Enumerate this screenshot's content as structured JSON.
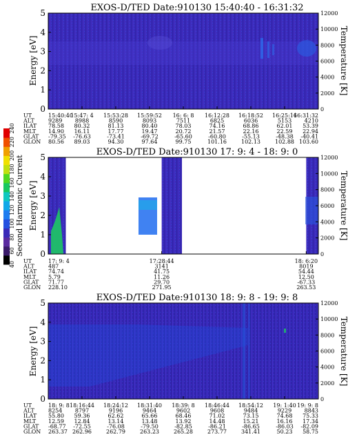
{
  "chart_data": [
    {
      "type": "heatmap",
      "title": "EXOS-D/TED   Date:910130   15:40:40 - 16:31:32",
      "ylabel": "Energy [eV]",
      "ylabel_right": "Temperature [K]",
      "ylim": [
        0,
        5
      ],
      "ylim_right": [
        0,
        12000
      ],
      "yticks": [
        "0",
        "1",
        "2",
        "3",
        "4",
        "5"
      ],
      "yticks_right": [
        "0",
        "2000",
        "4000",
        "6000",
        "8000",
        "10000",
        "12000"
      ],
      "time_start": "15:40:40",
      "time_end": "16:31:32",
      "data_coverage": [
        [
          0.0,
          1.0
        ]
      ],
      "ephemeris": {
        "labels": [
          "UT",
          "ALT",
          "ILAT",
          "MLT",
          "GLAT",
          "GLON"
        ],
        "columns": [
          [
            "15:40:40",
            "9289",
            "78.58",
            "14.90",
            "-79.35",
            "80.56"
          ],
          [
            "15:47: 4",
            "8988",
            "80.32",
            "16.11",
            "-76.63",
            "89.03"
          ],
          [
            "15:53:28",
            "8590",
            "81.13",
            "17.77",
            "-73.41",
            "94.30"
          ],
          [
            "15:59:52",
            "8093",
            "80.40",
            "19.47",
            "-69.72",
            "97.64"
          ],
          [
            "16: 6: 8",
            "7511",
            "78.03",
            "20.72",
            "-65.60",
            "99.75"
          ],
          [
            "16:12:28",
            "6825",
            "74.16",
            "21.57",
            "-60.80",
            "101.16"
          ],
          [
            "16:18:52",
            "6036",
            "68.86",
            "22.16",
            "-55.13",
            "102.13"
          ],
          [
            "16:25:16",
            "5153",
            "62.01",
            "22.59",
            "-48.38",
            "102.88"
          ],
          [
            "16:31:32",
            "4210",
            "53.39",
            "22.94",
            "-40.41",
            "103.60"
          ]
        ]
      }
    },
    {
      "type": "heatmap",
      "title": "EXOS-D/TED   Date:910130   17: 9: 4 - 18: 9: 0",
      "ylabel": "Energy [eV]",
      "ylabel_right": "Temperature [K]",
      "ylim": [
        0,
        5
      ],
      "ylim_right": [
        0,
        12000
      ],
      "yticks": [
        "0",
        "1",
        "2",
        "3",
        "4",
        "5"
      ],
      "yticks_right": [
        "0",
        "2000",
        "4000",
        "6000",
        "8000",
        "10000",
        "12000"
      ],
      "time_start": "17: 9: 4",
      "time_end": "18: 9: 0",
      "data_coverage": [
        [
          0.0,
          0.065
        ],
        [
          0.42,
          0.495
        ],
        [
          0.955,
          1.0
        ]
      ],
      "colorbar": {
        "label": "Second Harmonic Current",
        "ticks": [
          "40",
          "60",
          "80",
          "100",
          "120",
          "140",
          "160",
          "180",
          "200",
          "220",
          "240"
        ],
        "range": [
          40,
          240
        ]
      },
      "ephemeris": {
        "labels": [
          "UT",
          "ALT",
          "ILAT",
          "MLT",
          "GLAT",
          "GLON"
        ],
        "columns": [
          [
            "17: 9: 4",
            "487",
            "74.74",
            "5.79",
            "71.77",
            "228.10"
          ],
          [
            "17:28:44",
            "3141",
            "41.75",
            "11.26",
            "29.70",
            "271.95"
          ],
          [
            "18: 6:20",
            "8019",
            "54.44",
            "12.50",
            "-67.33",
            "263.53"
          ]
        ]
      }
    },
    {
      "type": "heatmap",
      "title": "EXOS-D/TED   Date:910130   18: 9: 8 - 19: 9: 8",
      "ylabel": "Energy [eV]",
      "ylabel_right": "Temperature [K]",
      "ylim": [
        0,
        5
      ],
      "ylim_right": [
        0,
        12000
      ],
      "yticks": [
        "0",
        "1",
        "2",
        "3",
        "4",
        "5"
      ],
      "yticks_right": [
        "0",
        "2000",
        "4000",
        "6000",
        "8000",
        "10000",
        "12000"
      ],
      "time_start": "18: 9: 8",
      "time_end": "19: 9: 8",
      "data_coverage": [
        [
          0.0,
          1.0
        ]
      ],
      "ephemeris": {
        "labels": [
          "UT",
          "ALT",
          "ILAT",
          "MLT",
          "GLAT",
          "GLON"
        ],
        "columns": [
          [
            "18: 9: 8",
            "8254",
            "55.80",
            "12.59",
            "-68.77",
            "263.37"
          ],
          [
            "18:16:44",
            "8797",
            "59.36",
            "12.84",
            "-72.55",
            "262.96"
          ],
          [
            "18:24:12",
            "9196",
            "62.62",
            "13.14",
            "-76.08",
            "262.79"
          ],
          [
            "18:31:40",
            "9464",
            "65.66",
            "13.48",
            "-79.50",
            "263.23"
          ],
          [
            "18:39: 8",
            "9602",
            "68.46",
            "13.92",
            "-82.85",
            "265.28"
          ],
          [
            "18:46:44",
            "9608",
            "71.02",
            "14.48",
            "-86.21",
            "273.77"
          ],
          [
            "18:54:12",
            "9484",
            "73.15",
            "15.21",
            "-86.65",
            "341.41"
          ],
          [
            "19: 1:40",
            "9229",
            "74.68",
            "16.16",
            "-86.03",
            "50.23"
          ],
          [
            "19: 9: 8",
            "8843",
            "75.33",
            "17.34",
            "-82.09",
            "58.75"
          ]
        ]
      }
    }
  ],
  "colors": {
    "background_plasma": "#3a2ab8",
    "enhanced_plasma": "#1e6cf0",
    "hot_core": "#14b4e6",
    "low_energy": "#1ec864"
  }
}
